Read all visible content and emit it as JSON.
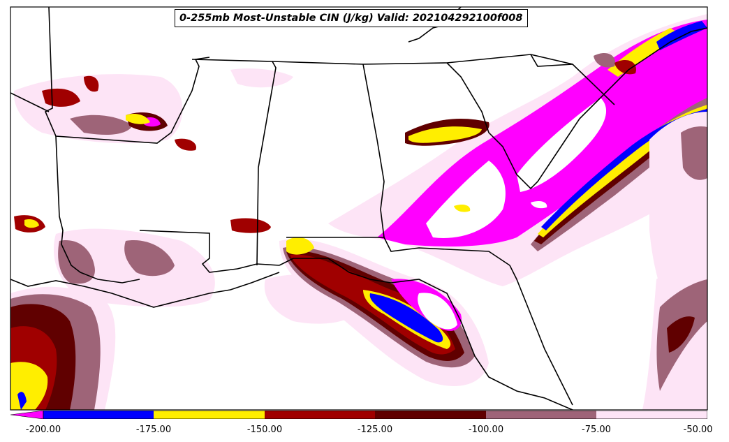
{
  "title": "0-255mb Most-Unstable CIN (J/kg) Valid: 202104292100f008",
  "colorbar": {
    "min": -200,
    "max": -50,
    "extend_min": true,
    "colors": [
      "#ff00ff",
      "#0000ff",
      "#ffee00",
      "#a00000",
      "#600000",
      "#9e6478",
      "#fde4f6"
    ],
    "boundaries": [
      -200,
      -175,
      -150,
      -125,
      -100,
      -75,
      -50
    ],
    "tick_labels": [
      "-200.00",
      "-175.00",
      "-150.00",
      "-125.00",
      "-100.00",
      "-75.00",
      "-50.00"
    ]
  },
  "map": {
    "region": "Southeastern United States",
    "background": "#ffffff",
    "border_color": "#000000"
  }
}
